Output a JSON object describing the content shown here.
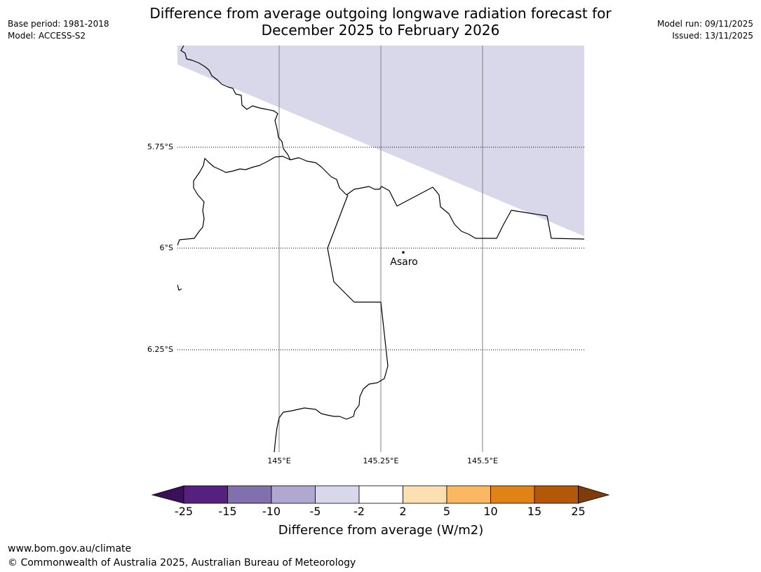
{
  "header": {
    "base_period": "Base period: 1981-2018",
    "model": "Model: ACCESS-S2",
    "title_line1": "Difference from average outgoing longwave radiation forecast for",
    "title_line2": "December 2025 to February 2026",
    "model_run": "Model run: 09/11/2025",
    "issued": "Issued: 13/11/2025"
  },
  "map": {
    "latitude_labels": [
      "5.75°S",
      "6°S",
      "6.25°S"
    ],
    "longitude_labels": [
      "145°E",
      "145.25°E",
      "145.5°E"
    ],
    "places": [
      {
        "name": "Asaro"
      }
    ],
    "shaded_region_category": "-5 to -2",
    "shaded_region_color": "#d8d8ea",
    "border_color": "#000000",
    "grid_color": "#808080"
  },
  "colorbar": {
    "ticks": [
      "-25",
      "-15",
      "-10",
      "-5",
      "-2",
      "2",
      "5",
      "10",
      "15",
      "25"
    ],
    "colors": [
      "#3b0f5a",
      "#56207e",
      "#8170ad",
      "#b1a8d2",
      "#d8d8ea",
      "#ffffff",
      "#fedfb1",
      "#fbb761",
      "#e08215",
      "#b35806",
      "#7f3b08"
    ],
    "label": "Difference from average (W/m2)"
  },
  "footer": {
    "url": "www.bom.gov.au/climate",
    "copyright": "© Commonwealth of Australia 2025, Australian Bureau of Meteorology"
  }
}
